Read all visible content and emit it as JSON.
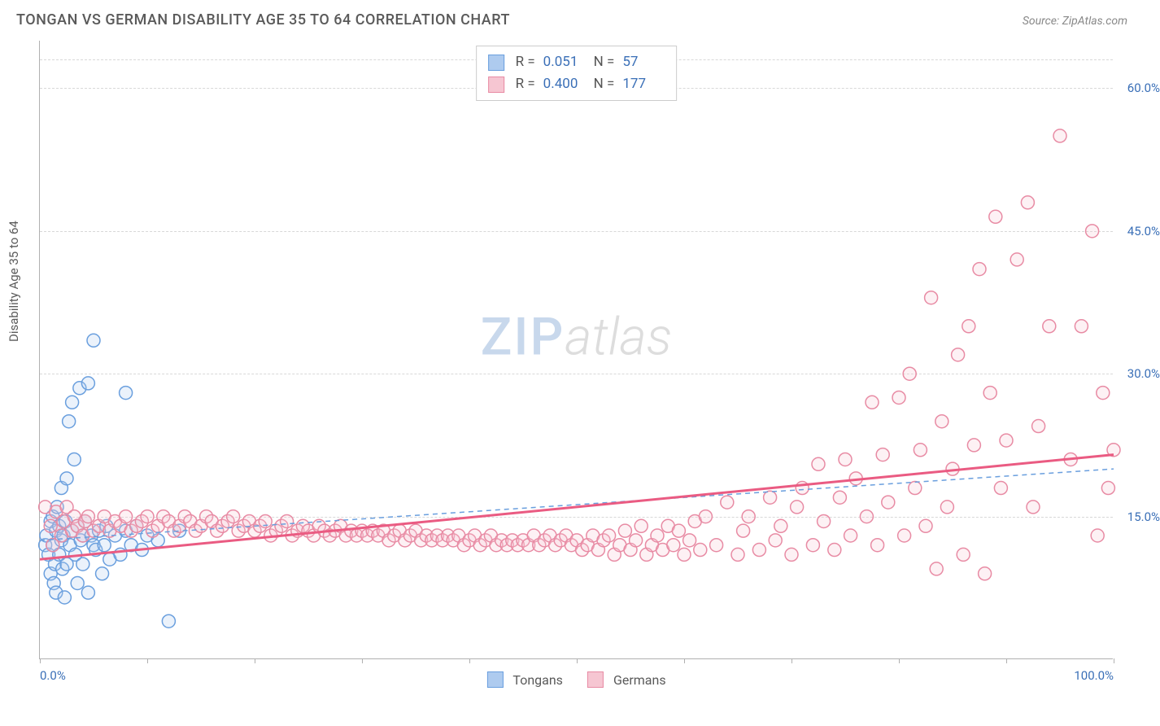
{
  "header": {
    "title": "TONGAN VS GERMAN DISABILITY AGE 35 TO 64 CORRELATION CHART",
    "source": "Source: ZipAtlas.com"
  },
  "chart": {
    "type": "scatter",
    "ylabel": "Disability Age 35 to 64",
    "xlim": [
      0,
      100
    ],
    "ylim": [
      0,
      65
    ],
    "background_color": "#ffffff",
    "grid_color": "#d8d8d8",
    "axis_color": "#b0b0b0",
    "tick_label_color": "#3a6fb7",
    "label_color": "#5a5a5a",
    "title_color": "#5a5a5a",
    "title_fontsize": 18,
    "label_fontsize": 15,
    "tick_fontsize": 15,
    "yticks": [
      15,
      30,
      45,
      60
    ],
    "ytick_labels": [
      "15.0%",
      "30.0%",
      "45.0%",
      "60.0%"
    ],
    "xticks_minor": [
      0,
      10,
      20,
      30,
      40,
      50,
      60,
      70,
      80,
      90,
      100
    ],
    "xticks_major": [
      0,
      100
    ],
    "xtick_labels": {
      "0": "0.0%",
      "100": "100.0%"
    },
    "marker_radius": 8,
    "marker_stroke_width": 1.5,
    "marker_fill_opacity": 0.25,
    "trend_line_width": 3,
    "trend_dash_width": 1.5,
    "watermark": {
      "zip": "ZIP",
      "atlas": "atlas",
      "zip_color": "#c8d8ec",
      "atlas_color": "#dddddd",
      "fontsize": 64
    }
  },
  "series": {
    "tongans": {
      "label": "Tongans",
      "fill_color": "#aecbef",
      "stroke_color": "#6a9fde",
      "trend_color": "#6a9fde",
      "trend_dashed": true,
      "R": "0.051",
      "N": "57",
      "trend": {
        "x1": 0,
        "y1": 12.5,
        "x2": 100,
        "y2": 20.0
      },
      "points": [
        [
          0.5,
          12
        ],
        [
          0.6,
          13
        ],
        [
          0.8,
          11
        ],
        [
          1.0,
          14.5
        ],
        [
          1.0,
          9
        ],
        [
          1.2,
          12
        ],
        [
          1.2,
          15
        ],
        [
          1.3,
          8
        ],
        [
          1.4,
          10
        ],
        [
          1.5,
          13.5
        ],
        [
          1.5,
          7
        ],
        [
          1.6,
          16
        ],
        [
          1.8,
          11
        ],
        [
          1.8,
          14
        ],
        [
          2.0,
          12.5
        ],
        [
          2.0,
          18
        ],
        [
          2.1,
          9.5
        ],
        [
          2.2,
          13
        ],
        [
          2.3,
          6.5
        ],
        [
          2.4,
          14.5
        ],
        [
          2.5,
          10
        ],
        [
          2.5,
          19
        ],
        [
          2.7,
          25
        ],
        [
          2.8,
          12
        ],
        [
          3.0,
          13.5
        ],
        [
          3.0,
          27
        ],
        [
          3.2,
          21
        ],
        [
          3.3,
          11
        ],
        [
          3.5,
          14
        ],
        [
          3.5,
          8
        ],
        [
          3.7,
          28.5
        ],
        [
          3.8,
          12.5
        ],
        [
          4.0,
          13
        ],
        [
          4.0,
          10
        ],
        [
          4.2,
          14.5
        ],
        [
          4.5,
          7
        ],
        [
          4.5,
          29
        ],
        [
          4.8,
          13
        ],
        [
          5.0,
          12
        ],
        [
          5.0,
          33.5
        ],
        [
          5.2,
          11.5
        ],
        [
          5.5,
          13.5
        ],
        [
          5.8,
          9
        ],
        [
          6.0,
          12
        ],
        [
          6.2,
          14
        ],
        [
          6.5,
          10.5
        ],
        [
          7.0,
          13
        ],
        [
          7.5,
          11
        ],
        [
          8.0,
          13.5
        ],
        [
          8.0,
          28
        ],
        [
          8.5,
          12
        ],
        [
          9.0,
          14
        ],
        [
          9.5,
          11.5
        ],
        [
          10.0,
          13
        ],
        [
          11.0,
          12.5
        ],
        [
          12.0,
          4
        ],
        [
          13.0,
          13.5
        ]
      ]
    },
    "germans": {
      "label": "Germans",
      "fill_color": "#f6c6d2",
      "stroke_color": "#e88ba4",
      "trend_color": "#ea5b82",
      "trend_dashed": false,
      "R": "0.400",
      "N": "177",
      "trend": {
        "x1": 0,
        "y1": 10.5,
        "x2": 100,
        "y2": 21.5
      },
      "points": [
        [
          0.5,
          16
        ],
        [
          1.0,
          14
        ],
        [
          1.2,
          12
        ],
        [
          1.5,
          15.5
        ],
        [
          2.0,
          13
        ],
        [
          2.2,
          14.5
        ],
        [
          2.5,
          16
        ],
        [
          3.0,
          13.5
        ],
        [
          3.2,
          15
        ],
        [
          3.5,
          14
        ],
        [
          4.0,
          13
        ],
        [
          4.2,
          14.5
        ],
        [
          4.5,
          15
        ],
        [
          5.0,
          13.5
        ],
        [
          5.5,
          14
        ],
        [
          6.0,
          15
        ],
        [
          6.5,
          13.5
        ],
        [
          7.0,
          14.5
        ],
        [
          7.5,
          14
        ],
        [
          8.0,
          15
        ],
        [
          8.5,
          13.5
        ],
        [
          9.0,
          14
        ],
        [
          9.5,
          14.5
        ],
        [
          10.0,
          15
        ],
        [
          10.5,
          13.5
        ],
        [
          11.0,
          14
        ],
        [
          11.5,
          15
        ],
        [
          12.0,
          14.5
        ],
        [
          12.5,
          13.5
        ],
        [
          13.0,
          14
        ],
        [
          13.5,
          15
        ],
        [
          14.0,
          14.5
        ],
        [
          14.5,
          13.5
        ],
        [
          15.0,
          14
        ],
        [
          15.5,
          15
        ],
        [
          16.0,
          14.5
        ],
        [
          16.5,
          13.5
        ],
        [
          17.0,
          14
        ],
        [
          17.5,
          14.5
        ],
        [
          18.0,
          15
        ],
        [
          18.5,
          13.5
        ],
        [
          19.0,
          14
        ],
        [
          19.5,
          14.5
        ],
        [
          20.0,
          13.5
        ],
        [
          20.5,
          14
        ],
        [
          21.0,
          14.5
        ],
        [
          21.5,
          13
        ],
        [
          22.0,
          13.5
        ],
        [
          22.5,
          14
        ],
        [
          23.0,
          14.5
        ],
        [
          23.5,
          13
        ],
        [
          24.0,
          13.5
        ],
        [
          24.5,
          14
        ],
        [
          25.0,
          13.5
        ],
        [
          25.5,
          13
        ],
        [
          26.0,
          14
        ],
        [
          26.5,
          13.5
        ],
        [
          27.0,
          13
        ],
        [
          27.5,
          13.5
        ],
        [
          28.0,
          14
        ],
        [
          28.5,
          13
        ],
        [
          29.0,
          13.5
        ],
        [
          29.5,
          13
        ],
        [
          30.0,
          13.5
        ],
        [
          30.5,
          13
        ],
        [
          31.0,
          13.5
        ],
        [
          31.5,
          13
        ],
        [
          32.0,
          13.5
        ],
        [
          32.5,
          12.5
        ],
        [
          33.0,
          13
        ],
        [
          33.5,
          13.5
        ],
        [
          34.0,
          12.5
        ],
        [
          34.5,
          13
        ],
        [
          35.0,
          13.5
        ],
        [
          35.5,
          12.5
        ],
        [
          36.0,
          13
        ],
        [
          36.5,
          12.5
        ],
        [
          37.0,
          13
        ],
        [
          37.5,
          12.5
        ],
        [
          38.0,
          13
        ],
        [
          38.5,
          12.5
        ],
        [
          39.0,
          13
        ],
        [
          39.5,
          12
        ],
        [
          40.0,
          12.5
        ],
        [
          40.5,
          13
        ],
        [
          41.0,
          12
        ],
        [
          41.5,
          12.5
        ],
        [
          42.0,
          13
        ],
        [
          42.5,
          12
        ],
        [
          43.0,
          12.5
        ],
        [
          43.5,
          12
        ],
        [
          44.0,
          12.5
        ],
        [
          44.5,
          12
        ],
        [
          45.0,
          12.5
        ],
        [
          45.5,
          12
        ],
        [
          46.0,
          13
        ],
        [
          46.5,
          12
        ],
        [
          47.0,
          12.5
        ],
        [
          47.5,
          13
        ],
        [
          48.0,
          12
        ],
        [
          48.5,
          12.5
        ],
        [
          49.0,
          13
        ],
        [
          49.5,
          12
        ],
        [
          50.0,
          12.5
        ],
        [
          50.5,
          11.5
        ],
        [
          51.0,
          12
        ],
        [
          51.5,
          13
        ],
        [
          52.0,
          11.5
        ],
        [
          52.5,
          12.5
        ],
        [
          53.0,
          13
        ],
        [
          53.5,
          11
        ],
        [
          54.0,
          12
        ],
        [
          54.5,
          13.5
        ],
        [
          55.0,
          11.5
        ],
        [
          55.5,
          12.5
        ],
        [
          56.0,
          14
        ],
        [
          56.5,
          11
        ],
        [
          57.0,
          12
        ],
        [
          57.5,
          13
        ],
        [
          58.0,
          11.5
        ],
        [
          58.5,
          14
        ],
        [
          59.0,
          12
        ],
        [
          59.5,
          13.5
        ],
        [
          60.0,
          11
        ],
        [
          60.5,
          12.5
        ],
        [
          61.0,
          14.5
        ],
        [
          61.5,
          11.5
        ],
        [
          62.0,
          15
        ],
        [
          63.0,
          12
        ],
        [
          64.0,
          16.5
        ],
        [
          65.0,
          11
        ],
        [
          65.5,
          13.5
        ],
        [
          66.0,
          15
        ],
        [
          67.0,
          11.5
        ],
        [
          68.0,
          17
        ],
        [
          68.5,
          12.5
        ],
        [
          69.0,
          14
        ],
        [
          70.0,
          11
        ],
        [
          70.5,
          16
        ],
        [
          71.0,
          18
        ],
        [
          72.0,
          12
        ],
        [
          72.5,
          20.5
        ],
        [
          73.0,
          14.5
        ],
        [
          74.0,
          11.5
        ],
        [
          74.5,
          17
        ],
        [
          75.0,
          21
        ],
        [
          75.5,
          13
        ],
        [
          76.0,
          19
        ],
        [
          77.0,
          15
        ],
        [
          77.5,
          27
        ],
        [
          78.0,
          12
        ],
        [
          78.5,
          21.5
        ],
        [
          79.0,
          16.5
        ],
        [
          80.0,
          27.5
        ],
        [
          80.5,
          13
        ],
        [
          81.0,
          30
        ],
        [
          81.5,
          18
        ],
        [
          82.0,
          22
        ],
        [
          82.5,
          14
        ],
        [
          83.0,
          38
        ],
        [
          83.5,
          9.5
        ],
        [
          84.0,
          25
        ],
        [
          84.5,
          16
        ],
        [
          85.0,
          20
        ],
        [
          85.5,
          32
        ],
        [
          86.0,
          11
        ],
        [
          86.5,
          35
        ],
        [
          87.0,
          22.5
        ],
        [
          87.5,
          41
        ],
        [
          88.0,
          9
        ],
        [
          88.5,
          28
        ],
        [
          89.0,
          46.5
        ],
        [
          89.5,
          18
        ],
        [
          90.0,
          23
        ],
        [
          91.0,
          42
        ],
        [
          92.0,
          48
        ],
        [
          92.5,
          16
        ],
        [
          93.0,
          24.5
        ],
        [
          94.0,
          35
        ],
        [
          95.0,
          55
        ],
        [
          96.0,
          21
        ],
        [
          97.0,
          35
        ],
        [
          98.0,
          45
        ],
        [
          98.5,
          13
        ],
        [
          99.0,
          28
        ],
        [
          99.5,
          18
        ],
        [
          100.0,
          22
        ]
      ]
    }
  },
  "legend": {
    "items": [
      {
        "key": "tongans",
        "label": "Tongans"
      },
      {
        "key": "germans",
        "label": "Germans"
      }
    ]
  }
}
